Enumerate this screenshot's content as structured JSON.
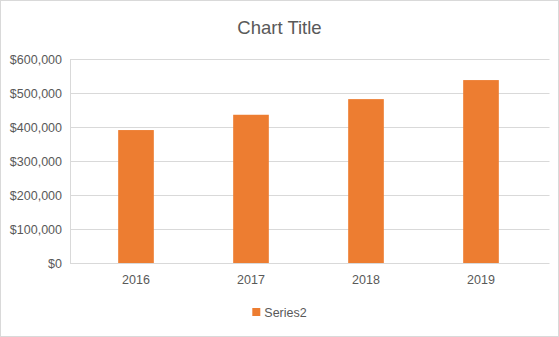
{
  "chart_data": {
    "type": "bar",
    "title": "Chart Title",
    "categories": [
      "2016",
      "2017",
      "2018",
      "2019"
    ],
    "series": [
      {
        "name": "Series2",
        "color": "#ed7d31",
        "values": [
          391000,
          436000,
          482000,
          538000
        ]
      }
    ],
    "ylim": [
      0,
      600000
    ],
    "yticks": [
      {
        "value": 0,
        "label": "$0"
      },
      {
        "value": 100000,
        "label": "$100,000"
      },
      {
        "value": 200000,
        "label": "$200,000"
      },
      {
        "value": 300000,
        "label": "$300,000"
      },
      {
        "value": 400000,
        "label": "$400,000"
      },
      {
        "value": 500000,
        "label": "$500,000"
      },
      {
        "value": 600000,
        "label": "$600,000"
      }
    ],
    "grid": true,
    "legend": "bottom"
  }
}
